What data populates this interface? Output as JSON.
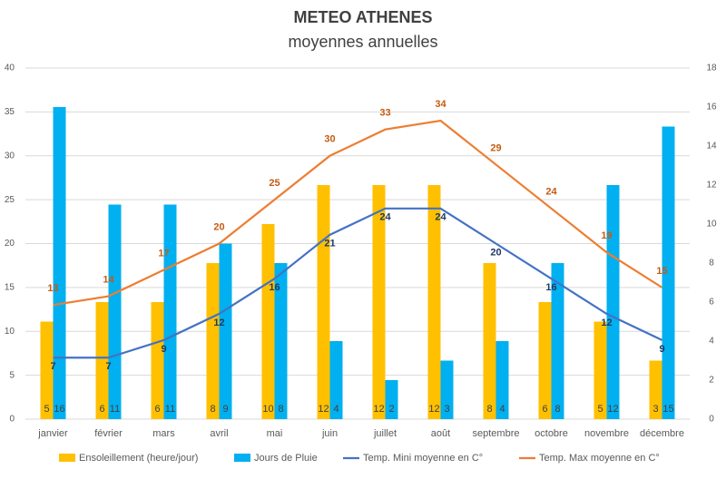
{
  "chart_data": {
    "type": "combo",
    "title": "METEO ATHENES",
    "subtitle": "moyennes annuelles",
    "categories": [
      "janvier",
      "février",
      "mars",
      "avril",
      "mai",
      "juin",
      "juillet",
      "août",
      "septembre",
      "octobre",
      "novembre",
      "décembre"
    ],
    "series": [
      {
        "name": "Ensoleillement (heure/jour)",
        "type": "bar",
        "axis": "y2",
        "color": "#ffc000",
        "values": [
          5,
          6,
          6,
          8,
          10,
          12,
          12,
          12,
          8,
          6,
          5,
          3
        ]
      },
      {
        "name": "Jours de Pluie",
        "type": "bar",
        "axis": "y2",
        "color": "#00b0f0",
        "values": [
          16,
          11,
          11,
          9,
          8,
          4,
          2,
          3,
          4,
          8,
          12,
          15
        ]
      },
      {
        "name": "Temp. Mini moyenne en C°",
        "type": "line",
        "color": "#4472c4",
        "values": [
          7,
          7,
          9,
          12,
          16,
          21,
          24,
          24,
          20,
          16,
          12,
          9
        ]
      },
      {
        "name": "Temp. Max moyenne en C°",
        "type": "line",
        "color": "#ed7d31",
        "values": [
          13,
          14,
          17,
          20,
          25,
          30,
          33,
          34,
          29,
          24,
          19,
          15
        ]
      }
    ],
    "ylim": [
      0,
      40
    ],
    "yticks": [
      0,
      5,
      10,
      15,
      20,
      25,
      30,
      35,
      40
    ],
    "y2lim": [
      0,
      18
    ],
    "y2ticks": [
      0,
      2,
      4,
      6,
      8,
      10,
      12,
      14,
      16,
      18
    ],
    "grid": true
  }
}
